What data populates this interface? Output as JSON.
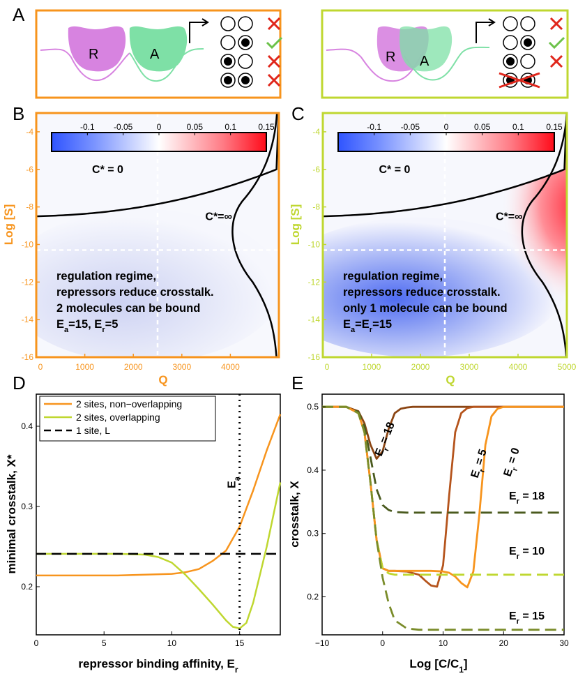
{
  "colors": {
    "orange": "#f7941d",
    "lime": "#bfd730",
    "dark_brown": "#8b4513",
    "mid_brown": "#b5541c",
    "olive_dark": "#4a5a1e",
    "olive_mid": "#7a8c2a",
    "cross_red": "#e0261b",
    "check_green": "#6cc24a",
    "repressor": "#d783e0",
    "activator": "#7ee0a6"
  },
  "panel_letters": [
    "A",
    "B",
    "C",
    "D",
    "E"
  ],
  "panel_A": {
    "left": {
      "repressor_label": "R",
      "activator_label": "A"
    },
    "right": {
      "repressor_label": "R",
      "activator_label": "A"
    }
  },
  "chart_data": [
    {
      "id": "B",
      "type": "heatmap",
      "xlabel": "Q",
      "ylabel": "Log [S]",
      "xlim": [
        0,
        5000
      ],
      "ylim": [
        -16,
        -3
      ],
      "xticks": [
        "0",
        "1000",
        "2000",
        "3000",
        "4000"
      ],
      "yticks": [
        "-16",
        "-14",
        "-12",
        "-10",
        "-8",
        "-6",
        "-4"
      ],
      "colorbar_ticks": [
        "-0.1",
        "-0.05",
        "0",
        "0.05",
        "0.1",
        "0.15"
      ],
      "colorbar_range": [
        -0.15,
        0.15
      ],
      "labels": {
        "c0": "C* = 0",
        "cinf": "C*=∞"
      },
      "text_lines": [
        "regulation regime,",
        "repressors reduce crosstalk.",
        "2 molecules can be bound"
      ],
      "params_prefix": "E",
      "params_sub_a": "a",
      "params_mid": "=15, E",
      "params_sub_r": "r",
      "params_end": "=5"
    },
    {
      "id": "C",
      "type": "heatmap",
      "xlabel": "Q",
      "ylabel": "Log [S]",
      "xlim": [
        0,
        5000
      ],
      "ylim": [
        -16,
        -3
      ],
      "xticks": [
        "0",
        "1000",
        "2000",
        "3000",
        "4000",
        "5000"
      ],
      "yticks": [
        "-16",
        "-14",
        "-12",
        "-10",
        "-8",
        "-6",
        "-4"
      ],
      "colorbar_ticks": [
        "-0.1",
        "-0.05",
        "0",
        "0.05",
        "0.1",
        "0.15"
      ],
      "colorbar_range": [
        -0.15,
        0.15
      ],
      "labels": {
        "c0": "C* = 0",
        "cinf": "C*=∞"
      },
      "text_lines": [
        "regulation regime,",
        "repressors reduce crosstalk.",
        "only 1 molecule can be bound"
      ],
      "params_prefix": "E",
      "params_sub_a": "a",
      "params_mid": "=E",
      "params_sub_r": "r",
      "params_end": "=15"
    },
    {
      "id": "D",
      "type": "line",
      "xlabel_main": "repressor binding affinity, E",
      "xlabel_sub": "r",
      "ylabel": "minimal crosstalk, X*",
      "xlim": [
        0,
        18
      ],
      "ylim": [
        0.14,
        0.44
      ],
      "xticks": [
        "0",
        "5",
        "10",
        "15"
      ],
      "yticks": [
        "0.2",
        "0.3",
        "0.4"
      ],
      "vline_label_main": "E",
      "vline_label_sub": "a",
      "vline_x": 15,
      "series": [
        {
          "name": "2 sites, non−overlapping",
          "x": [
            0,
            2,
            4,
            6,
            8,
            10,
            11,
            12,
            13,
            14,
            15,
            16,
            17,
            18
          ],
          "values": [
            0.214,
            0.214,
            0.214,
            0.214,
            0.215,
            0.216,
            0.218,
            0.222,
            0.232,
            0.245,
            0.275,
            0.32,
            0.37,
            0.415
          ]
        },
        {
          "name": "2 sites, overlapping",
          "x": [
            0,
            2,
            4,
            6,
            8,
            9,
            10,
            11,
            12,
            13,
            14,
            14.5,
            15,
            15.5,
            16,
            17,
            18
          ],
          "values": [
            0.241,
            0.241,
            0.241,
            0.241,
            0.24,
            0.237,
            0.23,
            0.215,
            0.197,
            0.178,
            0.158,
            0.15,
            0.148,
            0.155,
            0.18,
            0.25,
            0.33
          ]
        },
        {
          "name": "1 site, L",
          "x": [
            0,
            18
          ],
          "values": [
            0.241,
            0.241
          ]
        }
      ]
    },
    {
      "id": "E",
      "type": "line",
      "xlabel": "Log [C/C",
      "xlabel_sub": "1",
      "xlabel_end": "]",
      "ylabel": "crosstalk, X",
      "xlim": [
        -10,
        30
      ],
      "ylim": [
        0.14,
        0.52
      ],
      "xticks": [
        "−10",
        "0",
        "10",
        "20",
        "30"
      ],
      "yticks": [
        "0.2",
        "0.3",
        "0.4",
        "0.5"
      ],
      "annotations": [
        {
          "main": "E",
          "sub": "r",
          "rest": " = 18"
        },
        {
          "main": "E",
          "sub": "r",
          "rest": " = 5"
        },
        {
          "main": "E",
          "sub": "r",
          "rest": " = 0"
        },
        {
          "main": "E",
          "sub": "r",
          "rest": " = 18"
        },
        {
          "main": "E",
          "sub": "r",
          "rest": " = 10"
        },
        {
          "main": "E",
          "sub": "r",
          "rest": " = 15"
        }
      ],
      "series": [
        {
          "name": "E_r = 18 (solid)",
          "x": [
            -10,
            -6,
            -4,
            -3,
            -2,
            -1,
            0,
            1,
            2,
            3,
            4,
            5,
            6,
            8,
            10,
            30
          ],
          "values": [
            0.5,
            0.5,
            0.493,
            0.474,
            0.44,
            0.418,
            0.43,
            0.465,
            0.49,
            0.497,
            0.499,
            0.5,
            0.5,
            0.5,
            0.5,
            0.5
          ]
        },
        {
          "name": "E_r = 5 (solid)",
          "x": [
            -10,
            -6,
            -4,
            -3,
            -2,
            -1,
            0,
            1,
            2,
            4,
            6,
            7,
            8,
            9,
            10,
            11,
            12,
            13,
            14,
            15,
            20,
            30
          ],
          "values": [
            0.5,
            0.5,
            0.49,
            0.46,
            0.38,
            0.29,
            0.245,
            0.241,
            0.241,
            0.24,
            0.235,
            0.226,
            0.218,
            0.216,
            0.25,
            0.36,
            0.46,
            0.49,
            0.498,
            0.5,
            0.5,
            0.5
          ]
        },
        {
          "name": "E_r = 0 (solid)",
          "x": [
            -10,
            -6,
            -4,
            -3,
            -2,
            -1,
            0,
            1,
            2,
            4,
            6,
            8,
            10,
            11,
            12,
            13,
            14,
            15,
            16,
            17,
            18,
            19,
            20,
            30
          ],
          "values": [
            0.5,
            0.5,
            0.49,
            0.46,
            0.38,
            0.29,
            0.245,
            0.241,
            0.241,
            0.241,
            0.241,
            0.241,
            0.24,
            0.238,
            0.232,
            0.222,
            0.215,
            0.24,
            0.33,
            0.44,
            0.485,
            0.497,
            0.5,
            0.5
          ]
        },
        {
          "name": "E_r = 18 (dashed)",
          "x": [
            -10,
            -6,
            -4,
            -3,
            -2,
            -1,
            0,
            1,
            2,
            4,
            30
          ],
          "values": [
            0.5,
            0.5,
            0.492,
            0.47,
            0.42,
            0.37,
            0.345,
            0.337,
            0.334,
            0.333,
            0.333
          ]
        },
        {
          "name": "E_r = 10 (dashed)",
          "x": [
            -10,
            -6,
            -4,
            -3,
            -2,
            -1,
            0,
            1,
            2,
            30
          ],
          "values": [
            0.5,
            0.5,
            0.49,
            0.46,
            0.38,
            0.29,
            0.245,
            0.237,
            0.235,
            0.235
          ]
        },
        {
          "name": "E_r = 15 (dashed)",
          "x": [
            -10,
            -6,
            -4,
            -3,
            -2,
            -1,
            0,
            1,
            2,
            4,
            6,
            30
          ],
          "values": [
            0.5,
            0.5,
            0.49,
            0.46,
            0.38,
            0.29,
            0.23,
            0.19,
            0.163,
            0.15,
            0.148,
            0.148
          ]
        }
      ]
    }
  ]
}
